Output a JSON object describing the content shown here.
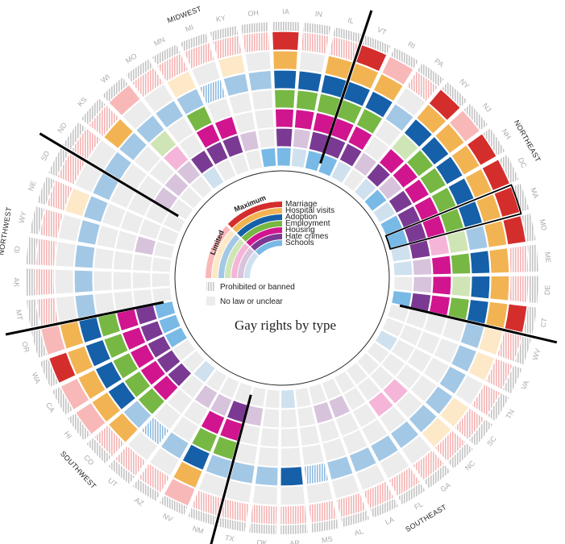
{
  "chart_data": {
    "type": "radial",
    "title": "Gay rights by type",
    "categories": [
      "Marriage",
      "Hospital visits",
      "Adoption",
      "Employment",
      "Housing",
      "Hate crimes",
      "Schools"
    ],
    "scale": {
      "low": "Limited",
      "high": "Maximum"
    },
    "legend_extra": [
      "Prohibited or banned",
      "No law or unclear"
    ],
    "colors": {
      "Marriage": [
        "#f9b8b8",
        "#d42e2c"
      ],
      "Hospital visits": [
        "#fde9c8",
        "#f2b452"
      ],
      "Adoption": [
        "#a3c8e6",
        "#1560a8"
      ],
      "Employment": [
        "#cfe5b5",
        "#77b844"
      ],
      "Housing": [
        "#f5b5d8",
        "#d1158f"
      ],
      "Hate crimes": [
        "#d8c3dc",
        "#7a3a93"
      ],
      "Schools": [
        "#cfe1ef",
        "#79b9e6"
      ],
      "none": "#ececec",
      "banned": "#c8c8c8"
    },
    "regions": [
      {
        "name": "NORTHEAST"
      },
      {
        "name": "SOUTHEAST"
      },
      {
        "name": "SOUTHWEST"
      },
      {
        "name": "NORTHWEST"
      },
      {
        "name": "MIDWEST"
      }
    ],
    "states": [
      {
        "state": "VT",
        "values": {
          "Marriage": "max",
          "Hospital visits": "max",
          "Adoption": "max",
          "Employment": "max",
          "Housing": "max",
          "Hate crimes": "max",
          "Schools": "max"
        }
      },
      {
        "state": "RI",
        "values": {
          "Marriage": "lim",
          "Hospital visits": "max",
          "Adoption": "max",
          "Employment": "max",
          "Housing": "max",
          "Hate crimes": "max",
          "Schools": "lim"
        }
      },
      {
        "state": "PA",
        "values": {
          "Marriage": "banned",
          "Hospital visits": "none",
          "Adoption": "lim",
          "Employment": "none",
          "Housing": "none",
          "Hate crimes": "lim",
          "Schools": "none"
        }
      },
      {
        "state": "NY",
        "values": {
          "Marriage": "max",
          "Hospital visits": "max",
          "Adoption": "max",
          "Employment": "lim",
          "Housing": "max",
          "Hate crimes": "max",
          "Schools": "lim"
        }
      },
      {
        "state": "NJ",
        "values": {
          "Marriage": "lim",
          "Hospital visits": "max",
          "Adoption": "max",
          "Employment": "max",
          "Housing": "max",
          "Hate crimes": "lim",
          "Schools": "max"
        }
      },
      {
        "state": "NH",
        "values": {
          "Marriage": "max",
          "Hospital visits": "max",
          "Adoption": "max",
          "Employment": "max",
          "Housing": "max",
          "Hate crimes": "max",
          "Schools": "lim"
        }
      },
      {
        "state": "DC",
        "values": {
          "Marriage": "max",
          "Hospital visits": "max",
          "Adoption": "max",
          "Employment": "max",
          "Housing": "max",
          "Hate crimes": "max",
          "Schools": "max"
        }
      },
      {
        "state": "MA",
        "values": {
          "Marriage": "max",
          "Hospital visits": "max",
          "Adoption": "max",
          "Employment": "max",
          "Housing": "max",
          "Hate crimes": "max",
          "Schools": "max"
        }
      },
      {
        "state": "MD",
        "values": {
          "Marriage": "max",
          "Hospital visits": "max",
          "Adoption": "lim",
          "Employment": "lim",
          "Housing": "lim",
          "Hate crimes": "max",
          "Schools": "lim"
        }
      },
      {
        "state": "ME",
        "values": {
          "Marriage": "banned",
          "Hospital visits": "max",
          "Adoption": "max",
          "Employment": "max",
          "Housing": "max",
          "Hate crimes": "lim",
          "Schools": "lim"
        }
      },
      {
        "state": "DE",
        "values": {
          "Marriage": "banned",
          "Hospital visits": "max",
          "Adoption": "max",
          "Employment": "lim",
          "Housing": "max",
          "Hate crimes": "lim",
          "Schools": "none"
        }
      },
      {
        "state": "CT",
        "values": {
          "Marriage": "max",
          "Hospital visits": "max",
          "Adoption": "max",
          "Employment": "max",
          "Housing": "max",
          "Hate crimes": "max",
          "Schools": "max"
        }
      },
      {
        "state": "WV",
        "values": {
          "Marriage": "banned",
          "Hospital visits": "lim",
          "Adoption": "lim",
          "Employment": "none",
          "Housing": "none",
          "Hate crimes": "none",
          "Schools": "none"
        }
      },
      {
        "state": "VA",
        "values": {
          "Marriage": "banned",
          "Hospital visits": "lim",
          "Adoption": "lim",
          "Employment": "none",
          "Housing": "none",
          "Hate crimes": "none",
          "Schools": "none"
        }
      },
      {
        "state": "TN",
        "values": {
          "Marriage": "banned",
          "Hospital visits": "none",
          "Adoption": "lim",
          "Employment": "none",
          "Housing": "none",
          "Hate crimes": "none",
          "Schools": "lim"
        }
      },
      {
        "state": "SC",
        "values": {
          "Marriage": "banned",
          "Hospital visits": "lim",
          "Adoption": "lim",
          "Employment": "none",
          "Housing": "none",
          "Hate crimes": "none",
          "Schools": "none"
        }
      },
      {
        "state": "NC",
        "values": {
          "Marriage": "banned",
          "Hospital visits": "lim",
          "Adoption": "lim",
          "Employment": "none",
          "Housing": "lim",
          "Hate crimes": "none",
          "Schools": "none"
        }
      },
      {
        "state": "GA",
        "values": {
          "Marriage": "banned",
          "Hospital visits": "none",
          "Adoption": "lim",
          "Employment": "none",
          "Housing": "lim",
          "Hate crimes": "none",
          "Schools": "none"
        }
      },
      {
        "state": "FL",
        "values": {
          "Marriage": "banned",
          "Hospital visits": "none",
          "Adoption": "lim",
          "Employment": "none",
          "Housing": "none",
          "Hate crimes": "none",
          "Schools": "none"
        }
      },
      {
        "state": "LA",
        "values": {
          "Marriage": "banned",
          "Hospital visits": "none",
          "Adoption": "lim",
          "Employment": "none",
          "Housing": "none",
          "Hate crimes": "lim",
          "Schools": "none"
        }
      },
      {
        "state": "AL",
        "values": {
          "Marriage": "banned",
          "Hospital visits": "none",
          "Adoption": "lim",
          "Employment": "none",
          "Housing": "none",
          "Hate crimes": "lim",
          "Schools": "none"
        }
      },
      {
        "state": "MS",
        "values": {
          "Marriage": "banned",
          "Hospital visits": "none",
          "Adoption": "banned",
          "Employment": "none",
          "Housing": "none",
          "Hate crimes": "none",
          "Schools": "none"
        }
      },
      {
        "state": "AR",
        "values": {
          "Marriage": "banned",
          "Hospital visits": "none",
          "Adoption": "max",
          "Employment": "none",
          "Housing": "none",
          "Hate crimes": "none",
          "Schools": "lim"
        }
      },
      {
        "state": "OK",
        "values": {
          "Marriage": "banned",
          "Hospital visits": "none",
          "Adoption": "lim",
          "Employment": "none",
          "Housing": "none",
          "Hate crimes": "none",
          "Schools": "none"
        }
      },
      {
        "state": "TX",
        "values": {
          "Marriage": "banned",
          "Hospital visits": "none",
          "Adoption": "lim",
          "Employment": "none",
          "Housing": "none",
          "Hate crimes": "lim",
          "Schools": "none"
        }
      },
      {
        "state": "NM",
        "values": {
          "Marriage": "banned",
          "Hospital visits": "none",
          "Adoption": "lim",
          "Employment": "max",
          "Housing": "max",
          "Hate crimes": "max",
          "Schools": "none"
        }
      },
      {
        "state": "NV",
        "values": {
          "Marriage": "lim",
          "Hospital visits": "max",
          "Adoption": "max",
          "Employment": "max",
          "Housing": "max",
          "Hate crimes": "lim",
          "Schools": "none"
        }
      },
      {
        "state": "AZ",
        "values": {
          "Marriage": "banned",
          "Hospital visits": "none",
          "Adoption": "lim",
          "Employment": "none",
          "Housing": "none",
          "Hate crimes": "lim",
          "Schools": "none"
        }
      },
      {
        "state": "UT",
        "values": {
          "Marriage": "banned",
          "Hospital visits": "none",
          "Adoption": "banned",
          "Employment": "none",
          "Housing": "none",
          "Hate crimes": "none",
          "Schools": "lim"
        }
      },
      {
        "state": "CO",
        "values": {
          "Marriage": "banned",
          "Hospital visits": "max",
          "Adoption": "lim",
          "Employment": "max",
          "Housing": "max",
          "Hate crimes": "max",
          "Schools": "none"
        }
      },
      {
        "state": "HI",
        "values": {
          "Marriage": "lim",
          "Hospital visits": "max",
          "Adoption": "max",
          "Employment": "max",
          "Housing": "max",
          "Hate crimes": "max",
          "Schools": "none"
        }
      },
      {
        "state": "CA",
        "values": {
          "Marriage": "lim",
          "Hospital visits": "max",
          "Adoption": "max",
          "Employment": "max",
          "Housing": "max",
          "Hate crimes": "max",
          "Schools": "max"
        }
      },
      {
        "state": "WA",
        "values": {
          "Marriage": "max",
          "Hospital visits": "max",
          "Adoption": "max",
          "Employment": "max",
          "Housing": "max",
          "Hate crimes": "max",
          "Schools": "max"
        }
      },
      {
        "state": "OR",
        "values": {
          "Marriage": "lim",
          "Hospital visits": "max",
          "Adoption": "max",
          "Employment": "max",
          "Housing": "max",
          "Hate crimes": "max",
          "Schools": "max"
        }
      },
      {
        "state": "MT",
        "values": {
          "Marriage": "banned",
          "Hospital visits": "none",
          "Adoption": "lim",
          "Employment": "none",
          "Housing": "none",
          "Hate crimes": "none",
          "Schools": "none"
        }
      },
      {
        "state": "AK",
        "values": {
          "Marriage": "banned",
          "Hospital visits": "none",
          "Adoption": "lim",
          "Employment": "none",
          "Housing": "none",
          "Hate crimes": "none",
          "Schools": "none"
        }
      },
      {
        "state": "ID",
        "values": {
          "Marriage": "banned",
          "Hospital visits": "none",
          "Adoption": "lim",
          "Employment": "none",
          "Housing": "none",
          "Hate crimes": "none",
          "Schools": "none"
        }
      },
      {
        "state": "WY",
        "values": {
          "Marriage": "banned",
          "Hospital visits": "none",
          "Adoption": "lim",
          "Employment": "none",
          "Housing": "none",
          "Hate crimes": "lim",
          "Schools": "none"
        }
      },
      {
        "state": "NE",
        "values": {
          "Marriage": "banned",
          "Hospital visits": "lim",
          "Adoption": "lim",
          "Employment": "none",
          "Housing": "none",
          "Hate crimes": "none",
          "Schools": "none"
        }
      },
      {
        "state": "SD",
        "values": {
          "Marriage": "banned",
          "Hospital visits": "none",
          "Adoption": "lim",
          "Employment": "none",
          "Housing": "none",
          "Hate crimes": "none",
          "Schools": "none"
        }
      },
      {
        "state": "ND",
        "values": {
          "Marriage": "banned",
          "Hospital visits": "none",
          "Adoption": "lim",
          "Employment": "none",
          "Housing": "none",
          "Hate crimes": "lim",
          "Schools": "none"
        }
      },
      {
        "state": "KS",
        "values": {
          "Marriage": "banned",
          "Hospital visits": "max",
          "Adoption": "lim",
          "Employment": "none",
          "Housing": "none",
          "Hate crimes": "lim",
          "Schools": "none"
        }
      },
      {
        "state": "WI",
        "values": {
          "Marriage": "lim",
          "Hospital visits": "none",
          "Adoption": "lim",
          "Employment": "lim",
          "Housing": "lim",
          "Hate crimes": "lim",
          "Schools": "none"
        }
      },
      {
        "state": "MO",
        "values": {
          "Marriage": "banned",
          "Hospital visits": "none",
          "Adoption": "lim",
          "Employment": "none",
          "Housing": "none",
          "Hate crimes": "max",
          "Schools": "lim"
        }
      },
      {
        "state": "MN",
        "values": {
          "Marriage": "banned",
          "Hospital visits": "lim",
          "Adoption": "lim",
          "Employment": "max",
          "Housing": "max",
          "Hate crimes": "max",
          "Schools": "none"
        }
      },
      {
        "state": "MI",
        "values": {
          "Marriage": "banned",
          "Hospital visits": "none",
          "Adoption": "banned",
          "Employment": "none",
          "Housing": "max",
          "Hate crimes": "max",
          "Schools": "none"
        }
      },
      {
        "state": "KY",
        "values": {
          "Marriage": "banned",
          "Hospital visits": "lim",
          "Adoption": "lim",
          "Employment": "none",
          "Housing": "none",
          "Hate crimes": "lim",
          "Schools": "none"
        }
      },
      {
        "state": "OH",
        "values": {
          "Marriage": "banned",
          "Hospital visits": "none",
          "Adoption": "lim",
          "Employment": "none",
          "Housing": "none",
          "Hate crimes": "none",
          "Schools": "max"
        }
      },
      {
        "state": "IA",
        "values": {
          "Marriage": "max",
          "Hospital visits": "max",
          "Adoption": "max",
          "Employment": "max",
          "Housing": "max",
          "Hate crimes": "max",
          "Schools": "max"
        }
      },
      {
        "state": "IN",
        "values": {
          "Marriage": "banned",
          "Hospital visits": "none",
          "Adoption": "max",
          "Employment": "max",
          "Housing": "max",
          "Hate crimes": "lim",
          "Schools": "lim"
        }
      },
      {
        "state": "IL",
        "values": {
          "Marriage": "banned",
          "Hospital visits": "max",
          "Adoption": "max",
          "Employment": "max",
          "Housing": "max",
          "Hate crimes": "max",
          "Schools": "max"
        }
      }
    ]
  }
}
